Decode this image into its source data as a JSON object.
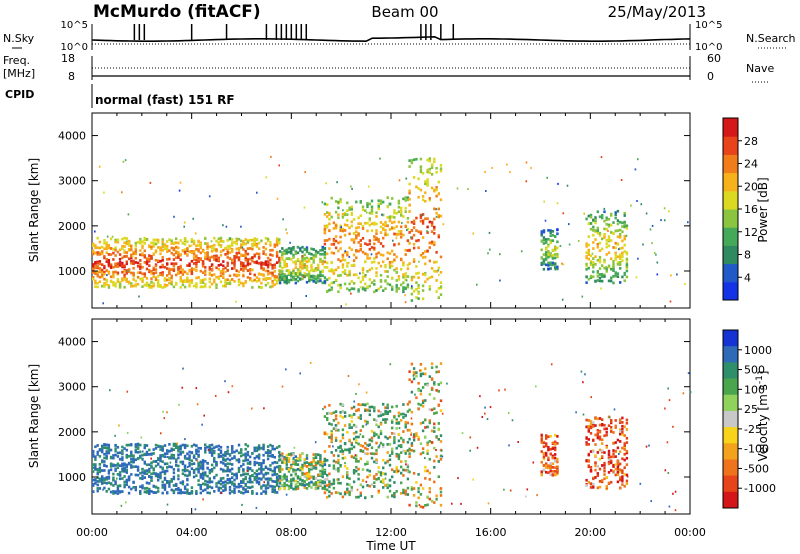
{
  "header": {
    "station": "McMurdo (fitACF)",
    "beam": "Beam 00",
    "date": "25/May/2013"
  },
  "top_panels": {
    "nsky_label": "N.Sky",
    "nsearch_label": "N.Search",
    "noise_tick_top": "10^5",
    "noise_tick_bottom": "10^0",
    "freq_label": "Freq.",
    "freq_unit": "[MHz]",
    "freq_tick_top": "18",
    "freq_tick_bottom": "8",
    "nave_label": "Nave",
    "nave_tick_top": "60",
    "nave_tick_bottom": "0",
    "cpid_label": "CPID",
    "cpid_text": "normal (fast) 151 RF"
  },
  "chart_data": [
    {
      "type": "heatmap",
      "panel": "power",
      "ylabel": "Slant Range [km]",
      "xlabel": "Time UT",
      "x_ticks": [
        "00:00",
        "04:00",
        "08:00",
        "12:00",
        "16:00",
        "20:00",
        "00:00"
      ],
      "xlim_hours": [
        0,
        24
      ],
      "y_ticks": [
        1000,
        2000,
        3000,
        4000
      ],
      "ylim": [
        180,
        4500
      ],
      "colorbar_label": "Power [dB]",
      "colorbar_ticks": [
        "4",
        "8",
        "12",
        "16",
        "20",
        "24",
        "28"
      ],
      "colorbar_colors": [
        "#1433e6",
        "#2259c8",
        "#2f8a5f",
        "#45a95a",
        "#8bc53f",
        "#dcd922",
        "#f7b11b",
        "#f07d1a",
        "#e8431b",
        "#d51818"
      ],
      "regions": [
        {
          "t_start": 0.0,
          "t_end": 7.5,
          "r_min": 600,
          "r_max": 1700,
          "value_db": 22
        },
        {
          "t_start": 7.5,
          "t_end": 9.3,
          "r_min": 700,
          "r_max": 1500,
          "value_db": 12
        },
        {
          "t_start": 9.3,
          "t_end": 12.7,
          "r_min": 500,
          "r_max": 2600,
          "value_db": 18
        },
        {
          "t_start": 12.7,
          "t_end": 14.0,
          "r_min": 300,
          "r_max": 3500,
          "value_db": 20
        },
        {
          "t_start": 18.0,
          "t_end": 18.7,
          "r_min": 1000,
          "r_max": 1900,
          "value_db": 10
        },
        {
          "t_start": 19.8,
          "t_end": 21.5,
          "r_min": 700,
          "r_max": 2300,
          "value_db": 14
        }
      ]
    },
    {
      "type": "heatmap",
      "panel": "velocity",
      "ylabel": "Slant Range [km]",
      "xlabel": "Time UT",
      "x_ticks": [
        "00:00",
        "04:00",
        "08:00",
        "12:00",
        "16:00",
        "20:00",
        "00:00"
      ],
      "xlim_hours": [
        0,
        24
      ],
      "y_ticks": [
        1000,
        2000,
        3000,
        4000
      ],
      "ylim": [
        180,
        4500
      ],
      "colorbar_label": "Velocity [m s^-1]",
      "colorbar_ticks": [
        "1000",
        "500",
        "100",
        "25",
        "-25",
        "-100",
        "-500",
        "-1000"
      ],
      "colorbar_colors": [
        "#1533d2",
        "#2e6ab8",
        "#2f8f6a",
        "#4ba54d",
        "#8fd35c",
        "#c8c8c8",
        "#f7d31a",
        "#f3a21c",
        "#ef731c",
        "#e6451a",
        "#d4161a"
      ],
      "regions": [
        {
          "t_start": 0.0,
          "t_end": 7.5,
          "r_min": 600,
          "r_max": 1700,
          "value_ms": 600
        },
        {
          "t_start": 7.5,
          "t_end": 9.3,
          "r_min": 700,
          "r_max": 1500,
          "value_ms": 200
        },
        {
          "t_start": 9.3,
          "t_end": 12.7,
          "r_min": 500,
          "r_max": 2600,
          "value_ms": 150
        },
        {
          "t_start": 12.7,
          "t_end": 14.0,
          "r_min": 300,
          "r_max": 3500,
          "value_ms": 50
        },
        {
          "t_start": 18.0,
          "t_end": 18.7,
          "r_min": 1000,
          "r_max": 1900,
          "value_ms": -300
        },
        {
          "t_start": 19.8,
          "t_end": 21.5,
          "r_min": 700,
          "r_max": 2300,
          "value_ms": -300
        }
      ]
    }
  ]
}
